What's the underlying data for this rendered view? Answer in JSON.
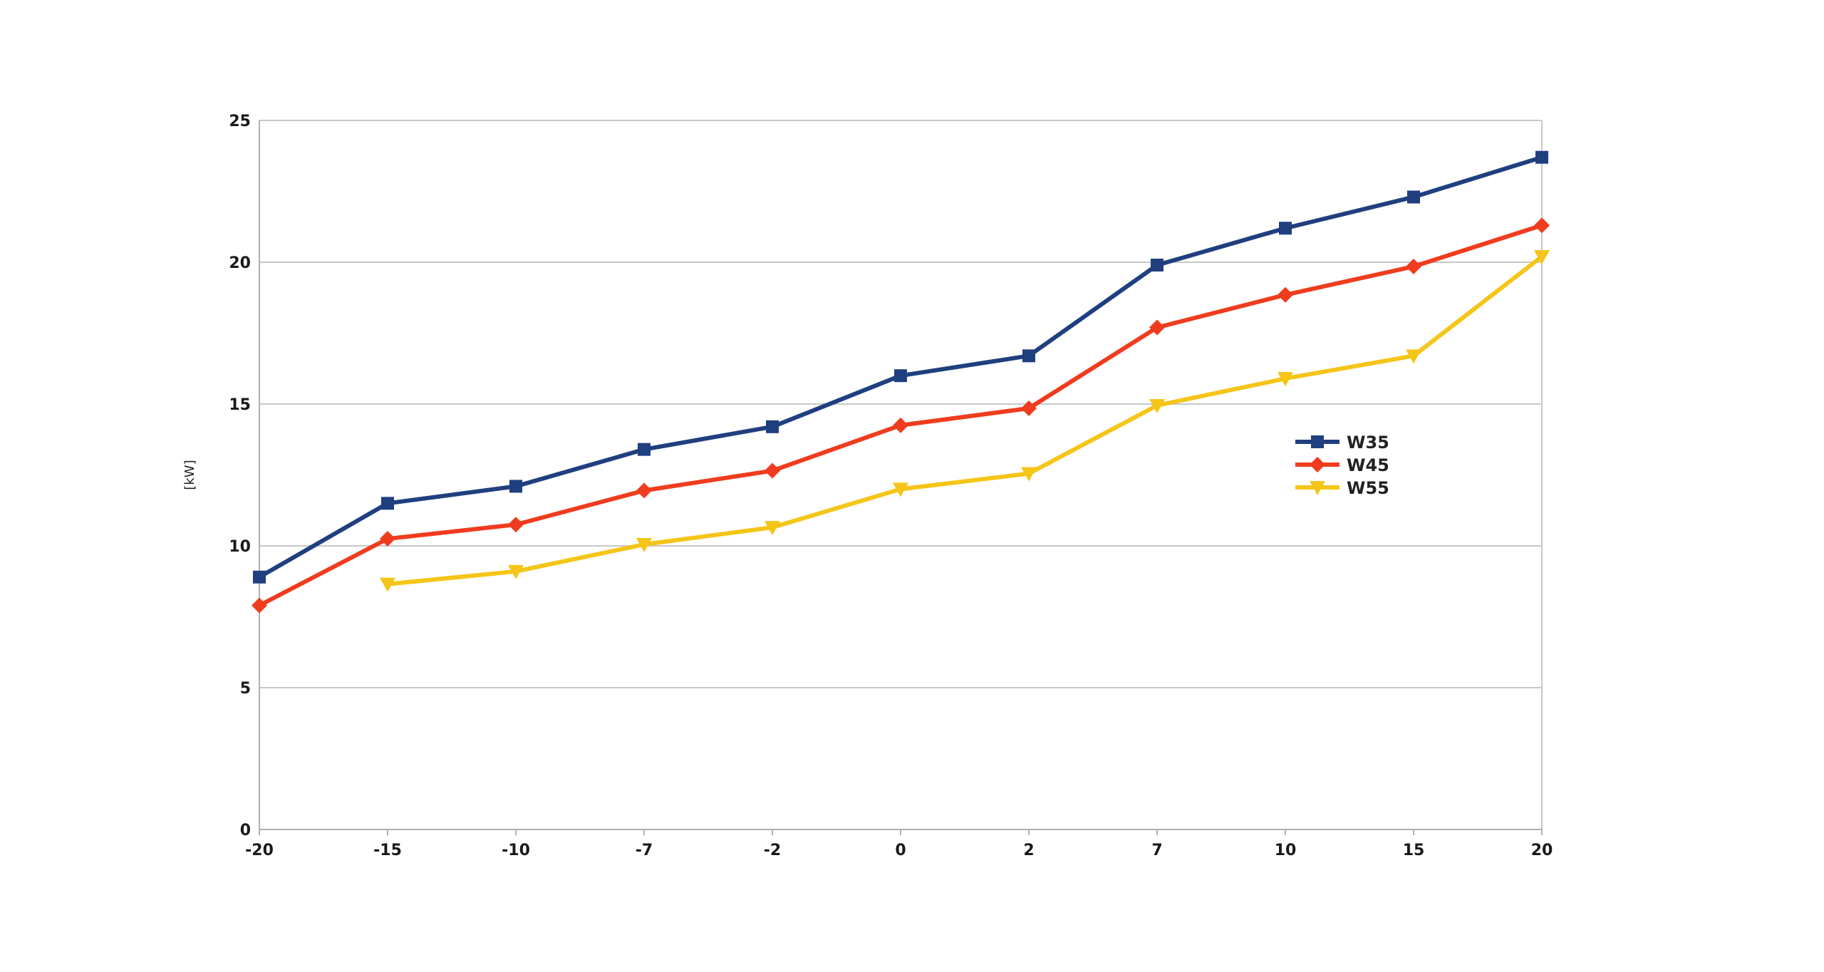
{
  "chart_data": {
    "type": "line",
    "title": "",
    "xlabel": "",
    "ylabel": "[kW]",
    "categories": [
      "-20",
      "-15",
      "-10",
      "-7",
      "-2",
      "0",
      "2",
      "7",
      "10",
      "15",
      "20"
    ],
    "ylim": [
      0,
      25
    ],
    "yticks": [
      "0",
      "5",
      "10",
      "15",
      "20",
      "25"
    ],
    "grid": true,
    "legend_position": "right",
    "series": [
      {
        "name": "W35",
        "color": "#1f3f7f",
        "marker": "square",
        "values": [
          8.9,
          11.5,
          12.1,
          13.4,
          14.2,
          16.0,
          16.7,
          19.9,
          21.2,
          22.3,
          23.7
        ]
      },
      {
        "name": "W45",
        "color": "#f03c1e",
        "marker": "diamond",
        "values": [
          7.9,
          10.25,
          10.75,
          11.95,
          12.65,
          14.25,
          14.85,
          17.7,
          18.85,
          19.85,
          21.3
        ]
      },
      {
        "name": "W55",
        "color": "#f5c518",
        "marker": "triangle-down",
        "values": [
          null,
          8.65,
          9.1,
          10.05,
          10.65,
          12.0,
          12.55,
          14.95,
          15.9,
          16.7,
          20.2
        ]
      }
    ]
  }
}
